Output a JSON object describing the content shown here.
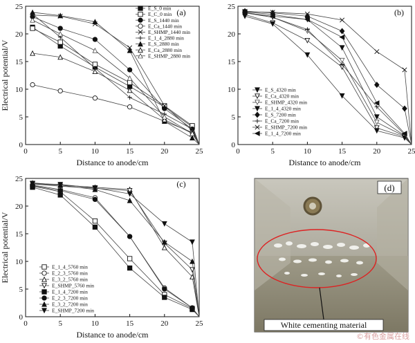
{
  "chart_data": [
    {
      "type": "line",
      "panel_label": "(a)",
      "xlabel": "Distance to anode/cm",
      "ylabel": "Electrical potential/V",
      "xlim": [
        0,
        25
      ],
      "ylim": [
        0,
        25
      ],
      "xticks": [
        0,
        5,
        10,
        15,
        20,
        25
      ],
      "yticks": [
        0,
        5,
        10,
        15,
        20,
        25
      ],
      "x": [
        1,
        5,
        10,
        15,
        20,
        24,
        25
      ],
      "legend_position": "top-right",
      "series": [
        {
          "name": "E_S_0 min",
          "marker": "square-filled",
          "values": [
            21.2,
            17.8,
            14.0,
            10.5,
            6.8,
            3.2,
            0
          ]
        },
        {
          "name": "E_C_0 min",
          "marker": "square-open",
          "values": [
            21.0,
            18.5,
            14.5,
            11.2,
            7.0,
            3.4,
            0
          ]
        },
        {
          "name": "E_S_1440 min",
          "marker": "circle-filled",
          "values": [
            23.1,
            21.0,
            19.0,
            13.5,
            6.5,
            2.8,
            0
          ]
        },
        {
          "name": "E_Ca_1440 min",
          "marker": "circle-open",
          "values": [
            10.8,
            9.7,
            8.4,
            6.8,
            4.2,
            2.2,
            0
          ]
        },
        {
          "name": "E_SHMP_1440 min",
          "marker": "x",
          "values": [
            23.4,
            23.2,
            21.8,
            17.5,
            7.0,
            2.5,
            0
          ]
        },
        {
          "name": "E_1_4_2880 min",
          "marker": "plus",
          "values": [
            23.6,
            19.4,
            13.8,
            8.5,
            5.5,
            2.8,
            0
          ]
        },
        {
          "name": "E_S_2880 min",
          "marker": "triangle-filled",
          "values": [
            23.9,
            23.3,
            22.2,
            17.0,
            4.2,
            1.2,
            0
          ]
        },
        {
          "name": "E_Ca_2880 min",
          "marker": "triangle-open",
          "values": [
            16.5,
            15.8,
            13.2,
            9.8,
            4.5,
            2.0,
            0
          ]
        },
        {
          "name": "E_SHMP_2880 min",
          "marker": "triangle-open-thin",
          "values": [
            22.5,
            20.0,
            17.0,
            12.0,
            5.0,
            2.0,
            0
          ]
        }
      ]
    },
    {
      "type": "line",
      "panel_label": "(b)",
      "xlabel": "Distance to anode/cm",
      "ylabel": "",
      "xlim": [
        0,
        25
      ],
      "ylim": [
        0,
        25
      ],
      "xticks": [
        0,
        5,
        10,
        15,
        20,
        25
      ],
      "yticks": [
        0,
        5,
        10,
        15,
        20,
        25
      ],
      "x": [
        1,
        5,
        10,
        15,
        20,
        24,
        25
      ],
      "legend_position": "bottom-left",
      "series": [
        {
          "name": "E_S_4320 min",
          "marker": "triangle-down-filled",
          "values": [
            24.0,
            23.5,
            22.6,
            17.5,
            5.0,
            1.6,
            0
          ]
        },
        {
          "name": "E_Ca_4320 min",
          "marker": "triangle-down-open",
          "values": [
            23.5,
            22.0,
            18.8,
            14.0,
            3.0,
            1.4,
            0
          ]
        },
        {
          "name": "E_SHMP_4320 min",
          "marker": "triangle-down-open-thin",
          "values": [
            23.8,
            23.0,
            20.5,
            15.2,
            4.0,
            1.5,
            0
          ]
        },
        {
          "name": "E_1_4_4320 min",
          "marker": "triangle-down-filled-small",
          "values": [
            23.2,
            21.8,
            16.2,
            8.8,
            2.5,
            1.2,
            0
          ]
        },
        {
          "name": "E_S_7200 min",
          "marker": "diamond-filled",
          "values": [
            24.1,
            23.8,
            23.2,
            20.5,
            10.8,
            6.5,
            0
          ]
        },
        {
          "name": "E_Ca_7200 min",
          "marker": "plus",
          "values": [
            23.9,
            23.0,
            20.8,
            14.5,
            6.8,
            1.8,
            0
          ]
        },
        {
          "name": "E_SHMP_7200 min",
          "marker": "x",
          "values": [
            24.0,
            23.9,
            23.6,
            22.5,
            16.8,
            13.5,
            0
          ]
        },
        {
          "name": "E_1_4_7200 min",
          "marker": "triangle-left-filled",
          "values": [
            23.8,
            23.2,
            22.6,
            19.4,
            7.5,
            2.0,
            0
          ]
        }
      ]
    },
    {
      "type": "line",
      "panel_label": "(c)",
      "xlabel": "Distance to anode/cm",
      "ylabel": "Electrical potential/V",
      "xlim": [
        0,
        25
      ],
      "ylim": [
        0,
        25
      ],
      "xticks": [
        0,
        5,
        10,
        15,
        20,
        25
      ],
      "yticks": [
        0,
        5,
        10,
        15,
        20,
        25
      ],
      "x": [
        1,
        5,
        10,
        15,
        20,
        24,
        25
      ],
      "legend_position": "bottom-left",
      "series": [
        {
          "name": "E_1_4_5760 min",
          "marker": "square-open",
          "values": [
            23.6,
            22.6,
            17.3,
            10.5,
            4.0,
            1.5,
            0
          ]
        },
        {
          "name": "E_2_3_5760 min",
          "marker": "circle-open",
          "values": [
            23.8,
            23.0,
            21.5,
            14.5,
            5.2,
            1.6,
            0
          ]
        },
        {
          "name": "E_3_2_5760 min",
          "marker": "triangle-open",
          "values": [
            24.0,
            23.8,
            23.4,
            23.0,
            12.5,
            7.2,
            0
          ]
        },
        {
          "name": "E_SHMP_5760 min",
          "marker": "triangle-down-open",
          "values": [
            24.0,
            23.6,
            23.2,
            22.8,
            13.3,
            8.5,
            0
          ]
        },
        {
          "name": "E_1_4_7200 min",
          "marker": "square-filled",
          "values": [
            23.4,
            22.0,
            16.2,
            8.8,
            3.5,
            1.3,
            0
          ]
        },
        {
          "name": "E_2_3_7200 min",
          "marker": "circle-filled",
          "values": [
            23.7,
            22.8,
            21.2,
            14.5,
            5.0,
            1.6,
            0
          ]
        },
        {
          "name": "E_3_2_7200 min",
          "marker": "triangle-filled",
          "values": [
            24.2,
            23.8,
            23.0,
            21.0,
            13.5,
            10.0,
            0
          ]
        },
        {
          "name": "E_SHMP_7200 min",
          "marker": "triangle-down-filled",
          "values": [
            24.1,
            23.9,
            23.3,
            22.2,
            16.8,
            13.5,
            0
          ]
        }
      ]
    }
  ],
  "photo": {
    "panel_label": "(d)",
    "annotation": "White cementing material"
  },
  "watermark": "©有色金属在线"
}
